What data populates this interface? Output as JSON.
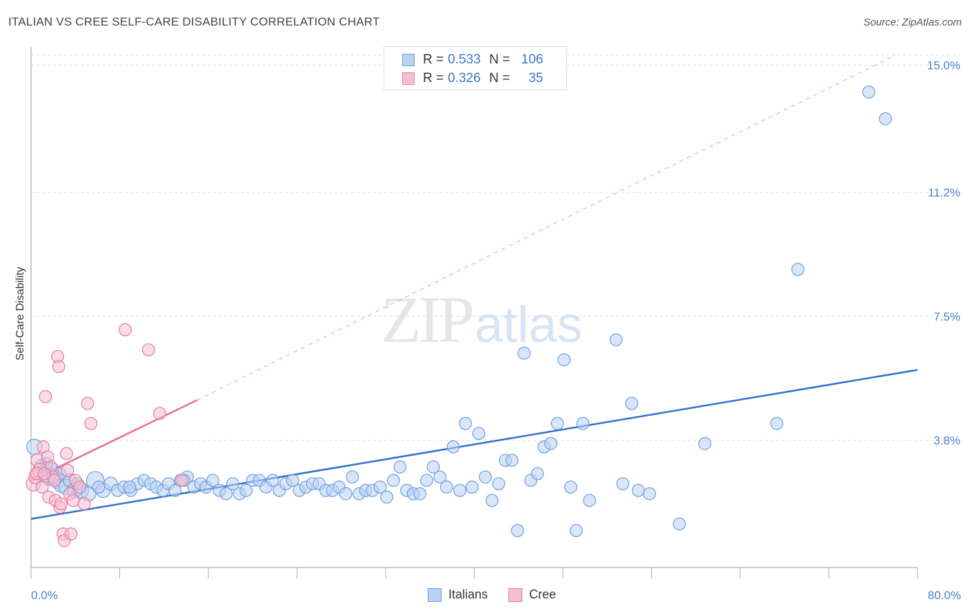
{
  "title": "ITALIAN VS CREE SELF-CARE DISABILITY CORRELATION CHART",
  "source": "Source: ZipAtlas.com",
  "watermark": {
    "zip": "ZIP",
    "atlas": "atlas"
  },
  "colors": {
    "italians": "#6a9ee0",
    "italians_fill": "#b9d1f3",
    "cree": "#e8779b",
    "cree_fill": "#f6c0d1",
    "blue_line": "#2e6fd1",
    "pink_line": "#e86b94",
    "label": "#4a7fd0",
    "grid": "#dddddd"
  },
  "legend": {
    "italians": {
      "r_label": "R = ",
      "r": "0.533",
      "n_label": "N = ",
      "n": "106"
    },
    "cree": {
      "r_label": "R = ",
      "r": "0.326",
      "n_label": "N = ",
      "n": "35"
    }
  },
  "bottom_legend": {
    "italians": "Italians",
    "cree": "Cree"
  },
  "chart_data": {
    "type": "scatter",
    "title": "ITALIAN VS CREE SELF-CARE DISABILITY CORRELATION CHART",
    "xlabel": "",
    "ylabel": "Self-Care Disability",
    "xlim": [
      0,
      80
    ],
    "ylim": [
      0,
      15.3
    ],
    "x_tick_labels": [
      "0.0%",
      "80.0%"
    ],
    "y_ticks": [
      3.8,
      7.5,
      11.2,
      15.0
    ],
    "y_tick_labels": [
      "3.8%",
      "7.5%",
      "11.2%",
      "15.0%"
    ],
    "grid": true,
    "legend_position": "top-center",
    "series": [
      {
        "name": "Italians",
        "r": 0.533,
        "n": 106,
        "trend": {
          "x": [
            0,
            80
          ],
          "y": [
            1.45,
            5.9
          ]
        },
        "points": [
          [
            0.3,
            3.6,
            1.4
          ],
          [
            1.0,
            3.0,
            1.4
          ],
          [
            1.3,
            2.8,
            1.6
          ],
          [
            1.6,
            2.7,
            1.5
          ],
          [
            1.9,
            2.9,
            1.3
          ],
          [
            2.1,
            2.7,
            1.3
          ],
          [
            2.4,
            2.6,
            1.4
          ],
          [
            2.8,
            2.5,
            1.6
          ],
          [
            3.2,
            2.4,
            1.4
          ],
          [
            3.5,
            2.6,
            1.2
          ],
          [
            3.9,
            2.3,
            1.3
          ],
          [
            4.5,
            2.3,
            1.4
          ],
          [
            5.2,
            2.2,
            1.3
          ],
          [
            5.8,
            2.6,
            1.6
          ],
          [
            6.5,
            2.3,
            1.3
          ],
          [
            7.2,
            2.5,
            1.2
          ],
          [
            7.8,
            2.3,
            1.1
          ],
          [
            8.4,
            2.4,
            1.1
          ],
          [
            9.0,
            2.3,
            1.1
          ],
          [
            9.6,
            2.5,
            1.1
          ],
          [
            10.2,
            2.6,
            1.1
          ],
          [
            10.8,
            2.5,
            1.1
          ],
          [
            11.3,
            2.4,
            1.1
          ],
          [
            11.9,
            2.3,
            1.1
          ],
          [
            12.4,
            2.5,
            1.1
          ],
          [
            13.0,
            2.3,
            1.1
          ],
          [
            13.5,
            2.6,
            1.1
          ],
          [
            14.1,
            2.7,
            1.1
          ],
          [
            14.7,
            2.4,
            1.1
          ],
          [
            15.3,
            2.5,
            1.1
          ],
          [
            15.8,
            2.4,
            1.1
          ],
          [
            16.4,
            2.6,
            1.1
          ],
          [
            17.0,
            2.3,
            1.1
          ],
          [
            17.6,
            2.2,
            1.1
          ],
          [
            18.2,
            2.5,
            1.1
          ],
          [
            18.8,
            2.2,
            1.1
          ],
          [
            19.4,
            2.3,
            1.1
          ],
          [
            20.0,
            2.6,
            1.1
          ],
          [
            20.6,
            2.6,
            1.1
          ],
          [
            21.2,
            2.4,
            1.1
          ],
          [
            21.8,
            2.6,
            1.1
          ],
          [
            22.4,
            2.3,
            1.1
          ],
          [
            23.0,
            2.5,
            1.1
          ],
          [
            23.6,
            2.6,
            1.1
          ],
          [
            24.2,
            2.3,
            1.1
          ],
          [
            24.8,
            2.4,
            1.1
          ],
          [
            25.4,
            2.5,
            1.1
          ],
          [
            26.0,
            2.5,
            1.1
          ],
          [
            26.6,
            2.3,
            1.1
          ],
          [
            27.2,
            2.3,
            1.1
          ],
          [
            27.8,
            2.4,
            1.1
          ],
          [
            28.4,
            2.2,
            1.1
          ],
          [
            29.0,
            2.7,
            1.1
          ],
          [
            29.6,
            2.2,
            1.1
          ],
          [
            30.2,
            2.3,
            1.1
          ],
          [
            30.8,
            2.3,
            1.1
          ],
          [
            31.5,
            2.4,
            1.1
          ],
          [
            32.1,
            2.1,
            1.1
          ],
          [
            32.7,
            2.6,
            1.1
          ],
          [
            33.3,
            3.0,
            1.1
          ],
          [
            33.9,
            2.3,
            1.1
          ],
          [
            34.5,
            2.2,
            1.1
          ],
          [
            35.1,
            2.2,
            1.1
          ],
          [
            35.7,
            2.6,
            1.1
          ],
          [
            36.3,
            3.0,
            1.1
          ],
          [
            36.9,
            2.7,
            1.1
          ],
          [
            37.5,
            2.4,
            1.1
          ],
          [
            38.1,
            3.6,
            1.1
          ],
          [
            38.7,
            2.3,
            1.1
          ],
          [
            39.2,
            4.3,
            1.1
          ],
          [
            39.8,
            2.4,
            1.1
          ],
          [
            40.4,
            4.0,
            1.1
          ],
          [
            41.0,
            2.7,
            1.1
          ],
          [
            41.6,
            2.0,
            1.1
          ],
          [
            42.2,
            2.5,
            1.1
          ],
          [
            42.8,
            3.2,
            1.1
          ],
          [
            43.4,
            3.2,
            1.1
          ],
          [
            43.9,
            1.1,
            1.1
          ],
          [
            44.5,
            6.4,
            1.1
          ],
          [
            45.1,
            2.6,
            1.1
          ],
          [
            45.7,
            2.8,
            1.1
          ],
          [
            46.3,
            3.6,
            1.1
          ],
          [
            46.9,
            3.7,
            1.1
          ],
          [
            47.5,
            4.3,
            1.1
          ],
          [
            48.1,
            6.2,
            1.1
          ],
          [
            48.7,
            2.4,
            1.1
          ],
          [
            49.2,
            1.1,
            1.1
          ],
          [
            49.8,
            4.3,
            1.1
          ],
          [
            50.4,
            2.0,
            1.1
          ],
          [
            52.8,
            6.8,
            1.1
          ],
          [
            53.4,
            2.5,
            1.1
          ],
          [
            54.2,
            4.9,
            1.1
          ],
          [
            54.8,
            2.3,
            1.1
          ],
          [
            55.8,
            2.2,
            1.1
          ],
          [
            58.5,
            1.3,
            1.1
          ],
          [
            60.8,
            3.7,
            1.1
          ],
          [
            67.3,
            4.3,
            1.1
          ],
          [
            69.2,
            8.9,
            1.1
          ],
          [
            75.6,
            14.2,
            1.1
          ],
          [
            77.1,
            13.4,
            1.1
          ],
          [
            1.4,
            3.1,
            1.1
          ],
          [
            2.6,
            2.8,
            1.1
          ],
          [
            4.2,
            2.5,
            1.1
          ],
          [
            6.1,
            2.4,
            1.1
          ],
          [
            8.9,
            2.4,
            1.1
          ],
          [
            13.8,
            2.6,
            1.1
          ]
        ]
      },
      {
        "name": "Cree",
        "r": 0.326,
        "n": 35,
        "trend": {
          "x": [
            0,
            15
          ],
          "y": [
            2.6,
            5.0
          ],
          "extended": {
            "x": [
              15,
              78
            ],
            "y": [
              5.0,
              15.3
            ]
          }
        },
        "points": [
          [
            0.2,
            2.5,
            1.3
          ],
          [
            0.4,
            2.7,
            1.2
          ],
          [
            0.6,
            3.2,
            1.2
          ],
          [
            0.8,
            2.9,
            1.3
          ],
          [
            1.0,
            2.4,
            1.1
          ],
          [
            1.1,
            3.6,
            1.1
          ],
          [
            1.3,
            5.1,
            1.1
          ],
          [
            1.5,
            3.3,
            1.1
          ],
          [
            1.6,
            2.1,
            1.1
          ],
          [
            1.8,
            3.0,
            1.1
          ],
          [
            2.0,
            2.7,
            1.1
          ],
          [
            2.2,
            2.0,
            1.1
          ],
          [
            2.4,
            6.3,
            1.1
          ],
          [
            2.5,
            6.0,
            1.1
          ],
          [
            2.6,
            1.8,
            1.1
          ],
          [
            2.7,
            1.9,
            1.1
          ],
          [
            2.9,
            1.0,
            1.1
          ],
          [
            3.0,
            0.8,
            1.1
          ],
          [
            3.2,
            3.4,
            1.1
          ],
          [
            3.3,
            2.9,
            1.1
          ],
          [
            3.5,
            2.2,
            1.1
          ],
          [
            3.6,
            1.0,
            1.1
          ],
          [
            3.8,
            2.0,
            1.1
          ],
          [
            4.0,
            2.6,
            1.1
          ],
          [
            4.4,
            2.4,
            1.1
          ],
          [
            4.8,
            1.9,
            1.1
          ],
          [
            5.1,
            4.9,
            1.1
          ],
          [
            5.4,
            4.3,
            1.1
          ],
          [
            8.5,
            7.1,
            1.1
          ],
          [
            10.6,
            6.5,
            1.1
          ],
          [
            11.6,
            4.6,
            1.1
          ],
          [
            13.6,
            2.6,
            1.1
          ],
          [
            0.5,
            2.8,
            1.1
          ],
          [
            1.2,
            2.8,
            1.1
          ],
          [
            2.1,
            2.6,
            1.1
          ]
        ]
      }
    ]
  }
}
